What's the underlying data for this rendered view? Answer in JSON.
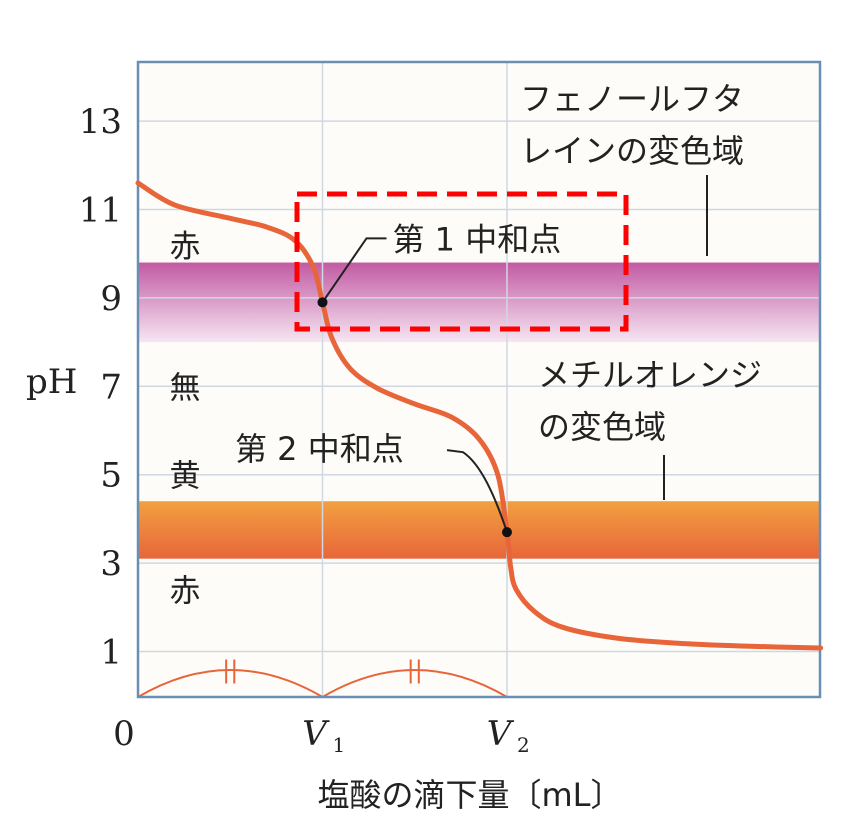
{
  "chart_data": {
    "type": "line",
    "title": "",
    "ylabel": "pH",
    "xlabel": "塩酸の滴下量〔mL〕",
    "ylim": [
      0,
      14
    ],
    "yticks": [
      1,
      3,
      5,
      7,
      9,
      11,
      13
    ],
    "xlim": [
      0,
      3.7
    ],
    "x_origin_label": "0",
    "xticks": [
      {
        "value": 1,
        "label": "V",
        "sub": "1"
      },
      {
        "value": 2,
        "label": "V",
        "sub": "2"
      }
    ],
    "grid": true,
    "series": [
      {
        "x": [
          0,
          0.2,
          0.5,
          0.7,
          0.85,
          0.95,
          1.0,
          1.05,
          1.15,
          1.3,
          1.5,
          1.7,
          1.85,
          1.95,
          2.0,
          2.02,
          2.05,
          2.15,
          2.3,
          2.6,
          3.0,
          3.4,
          3.7
        ],
        "y": [
          11.6,
          11.1,
          10.8,
          10.6,
          10.3,
          9.7,
          8.9,
          8.1,
          7.4,
          6.95,
          6.6,
          6.3,
          5.8,
          5.0,
          3.7,
          2.9,
          2.4,
          1.9,
          1.55,
          1.3,
          1.17,
          1.11,
          1.08
        ]
      }
    ],
    "points": [
      {
        "x": 1,
        "y": 8.9,
        "label": "第 1 中和点"
      },
      {
        "x": 2,
        "y": 3.7,
        "label": "第 2 中和点"
      }
    ],
    "bands": [
      {
        "name": "フェノールフタレインの変色域",
        "label_lines": [
          "フェノールフタ",
          "レインの変色域"
        ],
        "ymin": 8.0,
        "ymax": 9.8,
        "color_top": "#c25aa3",
        "color_bottom": "#f6e6f2"
      },
      {
        "name": "メチルオレンジの変色域",
        "label_lines": [
          "メチルオレンジ",
          "の変色域"
        ],
        "ymin": 3.1,
        "ymax": 4.4,
        "color_top": "#f2a040",
        "color_bottom": "#e8663a"
      }
    ],
    "color_labels": [
      {
        "text": "赤",
        "y": 10.2
      },
      {
        "text": "無",
        "y": 7.0
      },
      {
        "text": "黄",
        "y": 5.0
      },
      {
        "text": "赤",
        "y": 2.4
      }
    ],
    "equal_marks": "||",
    "highlight_box_color": "#ff0000",
    "colors": {
      "curve": "#e8653a",
      "background": "#f3f3f3",
      "plot": "#fdfcf9",
      "axis": "#6a8fb3",
      "grid": "#cfd8e2"
    }
  }
}
